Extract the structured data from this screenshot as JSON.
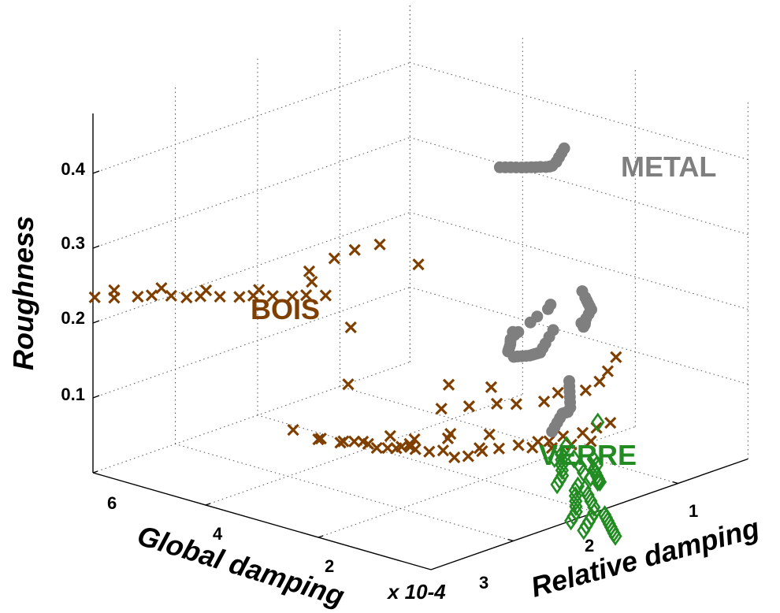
{
  "chart_data": {
    "type": "scatter",
    "axes": {
      "x": {
        "label": "Global damping",
        "multiplier": "x 10-4",
        "ticks": [
          "6",
          "4",
          "2"
        ]
      },
      "y": {
        "label": "Relative damping",
        "ticks": [
          "1",
          "2",
          "3"
        ]
      },
      "z": {
        "label": "Roughness",
        "ticks": [
          "0.4",
          "0.3",
          "0.2",
          "0.1"
        ],
        "range": [
          0,
          0.48
        ]
      }
    },
    "grid": true,
    "annotations": [
      "METAL",
      "BOIS",
      "VERRE"
    ],
    "series": [
      {
        "group": "BOIS",
        "marker": "x",
        "color": "#7f3f00",
        "points": [
          [
            6.7,
            0.5,
            0.2
          ],
          [
            6.5,
            0.6,
            0.2
          ],
          [
            6.3,
            0.75,
            0.2
          ],
          [
            6.2,
            0.85,
            0.2
          ],
          [
            6.0,
            0.95,
            0.2
          ],
          [
            5.8,
            1.0,
            0.2
          ],
          [
            5.7,
            1.1,
            0.2
          ],
          [
            5.5,
            1.2,
            0.2
          ],
          [
            5.3,
            1.3,
            0.2
          ],
          [
            5.2,
            1.4,
            0.2
          ],
          [
            5.0,
            1.5,
            0.2
          ],
          [
            4.8,
            1.6,
            0.2
          ],
          [
            4.7,
            1.7,
            0.2
          ],
          [
            4.5,
            1.8,
            0.2
          ],
          [
            6.5,
            0.6,
            0.21
          ],
          [
            6.1,
            0.9,
            0.21
          ],
          [
            5.6,
            1.1,
            0.21
          ],
          [
            5.1,
            1.4,
            0.21
          ],
          [
            4.6,
            1.7,
            0.22
          ],
          [
            4.5,
            1.6,
            0.24
          ],
          [
            4.2,
            1.7,
            0.26
          ],
          [
            3.4,
            1.4,
            0.3
          ],
          [
            3.1,
            1.5,
            0.31
          ],
          [
            3.0,
            1.9,
            0.27
          ],
          [
            4.2,
            1.9,
            0.16
          ],
          [
            4.1,
            1.8,
            0.09
          ],
          [
            4.2,
            1.2,
            0.05
          ],
          [
            3.9,
            1.3,
            0.04
          ],
          [
            3.6,
            1.4,
            0.04
          ],
          [
            3.4,
            1.5,
            0.04
          ],
          [
            3.3,
            1.6,
            0.03
          ],
          [
            3.1,
            1.7,
            0.03
          ],
          [
            3.0,
            1.8,
            0.03
          ],
          [
            4.0,
            1.4,
            0.035
          ],
          [
            3.8,
            1.5,
            0.03
          ],
          [
            3.7,
            1.6,
            0.03
          ],
          [
            3.6,
            1.7,
            0.025
          ],
          [
            3.4,
            1.8,
            0.02
          ],
          [
            3.3,
            1.9,
            0.02
          ],
          [
            3.5,
            1.9,
            0.03
          ],
          [
            3.3,
            2.0,
            0.02
          ],
          [
            3.2,
            2.0,
            0.015
          ],
          [
            3.1,
            2.1,
            0.01
          ],
          [
            3.0,
            2.2,
            0.01
          ],
          [
            2.8,
            2.2,
            0.005
          ],
          [
            2.7,
            2.3,
            0.005
          ],
          [
            2.6,
            2.4,
            0.01
          ],
          [
            2.5,
            2.3,
            0.02
          ],
          [
            2.3,
            2.4,
            0.02
          ],
          [
            2.1,
            2.5,
            0.025
          ],
          [
            1.9,
            2.6,
            0.03
          ],
          [
            1.7,
            2.6,
            0.035
          ],
          [
            1.6,
            2.7,
            0.04
          ],
          [
            1.4,
            2.8,
            0.045
          ],
          [
            1.3,
            2.9,
            0.05
          ],
          [
            1.2,
            3.0,
            0.055
          ],
          [
            2.0,
            2.6,
            0.02
          ],
          [
            1.8,
            2.7,
            0.02
          ],
          [
            1.6,
            2.8,
            0.025
          ],
          [
            1.4,
            2.9,
            0.03
          ],
          [
            2.9,
            2.2,
            0.1
          ],
          [
            2.3,
            1.7,
            0.1
          ],
          [
            2.1,
            1.9,
            0.1
          ],
          [
            1.9,
            2.1,
            0.1
          ],
          [
            1.7,
            2.2,
            0.1
          ],
          [
            1.5,
            2.4,
            0.1
          ],
          [
            1.4,
            2.5,
            0.11
          ],
          [
            1.2,
            2.7,
            0.11
          ],
          [
            1.1,
            2.8,
            0.12
          ],
          [
            1.1,
            2.9,
            0.13
          ],
          [
            1.1,
            3.0,
            0.145
          ],
          [
            2.0,
            2.1,
            0.12
          ],
          [
            3.8,
            2.4,
            0.0
          ],
          [
            3.5,
            2.6,
            0.0
          ],
          [
            3.6,
            2.7,
            0.0
          ],
          [
            3.2,
            2.9,
            0.0
          ]
        ]
      },
      {
        "group": "METAL",
        "marker": "o",
        "color": "#7f7f7f",
        "points": [
          [
            0.85,
            2.2,
            0.46
          ],
          [
            0.75,
            2.1,
            0.46
          ],
          [
            0.65,
            2.0,
            0.46
          ],
          [
            0.55,
            1.9,
            0.46
          ],
          [
            0.48,
            1.8,
            0.46
          ],
          [
            0.38,
            1.7,
            0.465
          ],
          [
            0.3,
            1.6,
            0.47
          ],
          [
            0.25,
            1.5,
            0.475
          ],
          [
            0.18,
            1.4,
            0.48
          ],
          [
            0.12,
            1.3,
            0.485
          ],
          [
            0.06,
            1.2,
            0.49
          ],
          [
            0.0,
            1.1,
            0.495
          ],
          [
            -0.05,
            1.0,
            0.5
          ],
          [
            -0.1,
            0.9,
            0.505
          ],
          [
            -0.15,
            0.8,
            0.51
          ],
          [
            -0.2,
            0.7,
            0.515
          ],
          [
            0.8,
            2.0,
            0.26
          ],
          [
            0.7,
            1.9,
            0.26
          ],
          [
            0.6,
            1.7,
            0.26
          ],
          [
            0.5,
            1.55,
            0.26
          ],
          [
            0.35,
            1.3,
            0.26
          ],
          [
            0.3,
            1.2,
            0.265
          ],
          [
            0.2,
            1.15,
            0.265
          ],
          [
            0.12,
            1.05,
            0.265
          ],
          [
            0.05,
            1.0,
            0.265
          ],
          [
            -0.02,
            0.95,
            0.265
          ],
          [
            -0.08,
            0.9,
            0.265
          ],
          [
            -0.14,
            0.85,
            0.265
          ],
          [
            -0.2,
            0.8,
            0.265
          ],
          [
            0.9,
            2.1,
            0.22
          ],
          [
            0.75,
            1.95,
            0.22
          ],
          [
            0.6,
            1.8,
            0.22
          ],
          [
            0.5,
            1.7,
            0.22
          ],
          [
            0.4,
            1.6,
            0.22
          ],
          [
            0.3,
            1.5,
            0.225
          ],
          [
            0.2,
            1.4,
            0.23
          ],
          [
            0.1,
            1.3,
            0.235
          ],
          [
            0.0,
            1.2,
            0.24
          ],
          [
            -0.08,
            1.1,
            0.245
          ],
          [
            -0.15,
            1.0,
            0.25
          ],
          [
            -0.22,
            0.9,
            0.255
          ],
          [
            -0.3,
            0.8,
            0.26
          ],
          [
            1.7,
            3.0,
            0.22
          ],
          [
            1.5,
            2.9,
            0.22
          ],
          [
            1.4,
            2.85,
            0.22
          ],
          [
            1.3,
            2.8,
            0.22
          ],
          [
            1.2,
            2.75,
            0.22
          ],
          [
            1.1,
            2.7,
            0.22
          ],
          [
            1.0,
            2.6,
            0.22
          ],
          [
            0.9,
            2.5,
            0.22
          ],
          [
            0.85,
            2.45,
            0.215
          ],
          [
            0.8,
            2.4,
            0.215
          ],
          [
            0.72,
            2.35,
            0.22
          ],
          [
            0.64,
            2.3,
            0.225
          ],
          [
            0.56,
            2.25,
            0.23
          ],
          [
            0.48,
            2.2,
            0.235
          ],
          [
            0.4,
            2.1,
            0.24
          ],
          [
            1.2,
            2.5,
            0.13
          ],
          [
            1.05,
            2.4,
            0.13
          ],
          [
            0.9,
            2.3,
            0.13
          ],
          [
            0.75,
            2.2,
            0.13
          ],
          [
            0.6,
            2.1,
            0.13
          ],
          [
            0.45,
            2.0,
            0.13
          ],
          [
            0.35,
            1.9,
            0.13
          ],
          [
            0.25,
            1.8,
            0.135
          ],
          [
            0.15,
            1.7,
            0.14
          ],
          [
            0.05,
            1.6,
            0.14
          ],
          [
            -0.05,
            1.5,
            0.14
          ],
          [
            -0.15,
            1.4,
            0.14
          ],
          [
            -0.25,
            1.3,
            0.14
          ]
        ]
      },
      {
        "group": "VERRE",
        "marker": "diamond",
        "color": "#228b22",
        "points": [
          [
            0.4,
            2.3,
            0.1
          ],
          [
            1.1,
            2.4,
            0.05
          ],
          [
            0.9,
            2.2,
            0.05
          ],
          [
            0.75,
            2.1,
            0.05
          ],
          [
            0.6,
            2.0,
            0.05
          ],
          [
            0.45,
            1.9,
            0.05
          ],
          [
            0.3,
            1.8,
            0.05
          ],
          [
            0.2,
            1.7,
            0.05
          ],
          [
            0.1,
            1.6,
            0.05
          ],
          [
            0.9,
            2.4,
            0.0
          ],
          [
            0.8,
            2.3,
            0.0
          ],
          [
            0.65,
            2.2,
            0.0
          ],
          [
            0.5,
            2.1,
            0.0
          ],
          [
            0.35,
            2.0,
            0.0
          ],
          [
            0.2,
            1.9,
            0.0
          ],
          [
            0.1,
            1.8,
            0.0
          ],
          [
            0.0,
            1.7,
            0.0
          ],
          [
            1.9,
            2.8,
            0.0
          ],
          [
            1.7,
            2.9,
            0.0
          ],
          [
            1.5,
            3.0,
            0.0
          ],
          [
            1.3,
            2.9,
            0.0
          ],
          [
            1.2,
            2.8,
            0.0
          ],
          [
            1.1,
            2.75,
            0.0
          ],
          [
            1.0,
            2.7,
            0.0
          ],
          [
            0.9,
            2.65,
            0.0
          ],
          [
            0.8,
            2.6,
            0.0
          ],
          [
            1.8,
            3.1,
            -0.05
          ],
          [
            1.6,
            3.0,
            -0.05
          ],
          [
            1.4,
            2.9,
            -0.05
          ],
          [
            1.2,
            2.8,
            -0.05
          ],
          [
            1.05,
            2.7,
            -0.05
          ],
          [
            0.95,
            2.6,
            -0.05
          ],
          [
            0.85,
            2.5,
            -0.05
          ],
          [
            0.75,
            2.4,
            -0.05
          ],
          [
            0.65,
            2.3,
            -0.05
          ],
          [
            1.3,
            3.0,
            -0.07
          ],
          [
            1.2,
            2.95,
            -0.07
          ],
          [
            1.1,
            2.9,
            -0.07
          ],
          [
            1.0,
            2.85,
            -0.07
          ],
          [
            0.9,
            2.8,
            -0.07
          ],
          [
            0.8,
            2.75,
            -0.07
          ],
          [
            0.7,
            2.7,
            -0.07
          ],
          [
            0.6,
            2.65,
            -0.07
          ],
          [
            1.0,
            2.5,
            0.02
          ],
          [
            0.8,
            2.4,
            0.02
          ],
          [
            0.6,
            2.35,
            0.02
          ],
          [
            0.4,
            2.3,
            0.02
          ]
        ]
      }
    ]
  }
}
